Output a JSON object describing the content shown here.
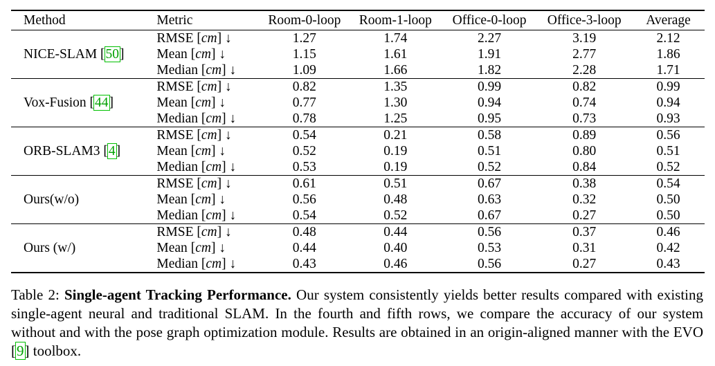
{
  "table": {
    "headers": [
      "Method",
      "Metric",
      "Room-0-loop",
      "Room-1-loop",
      "Office-0-loop",
      "Office-3-loop",
      "Average"
    ],
    "metric_unit": "cm",
    "arrow": "↓",
    "metrics": [
      "RMSE",
      "Mean",
      "Median"
    ],
    "groups": [
      {
        "method": "NICE-SLAM ",
        "cite": "50",
        "rows": [
          {
            "values": [
              "1.27",
              "1.74",
              "2.27",
              "3.19",
              "2.12"
            ],
            "bold": [
              false,
              false,
              false,
              false,
              false
            ]
          },
          {
            "values": [
              "1.15",
              "1.61",
              "1.91",
              "2.77",
              "1.86"
            ],
            "bold": [
              false,
              false,
              false,
              false,
              false
            ]
          },
          {
            "values": [
              "1.09",
              "1.66",
              "1.82",
              "2.28",
              "1.71"
            ],
            "bold": [
              false,
              false,
              false,
              false,
              false
            ]
          }
        ]
      },
      {
        "method": "Vox-Fusion ",
        "cite": "44",
        "rows": [
          {
            "values": [
              "0.82",
              "1.35",
              "0.99",
              "0.82",
              "0.99"
            ],
            "bold": [
              false,
              false,
              false,
              false,
              false
            ]
          },
          {
            "values": [
              "0.77",
              "1.30",
              "0.94",
              "0.74",
              "0.94"
            ],
            "bold": [
              false,
              false,
              false,
              false,
              false
            ]
          },
          {
            "values": [
              "0.78",
              "1.25",
              "0.95",
              "0.73",
              "0.93"
            ],
            "bold": [
              false,
              false,
              false,
              false,
              false
            ]
          }
        ]
      },
      {
        "method": "ORB-SLAM3 ",
        "cite": "4",
        "rows": [
          {
            "values": [
              "0.54",
              "0.21",
              "0.58",
              "0.89",
              "0.56"
            ],
            "bold": [
              false,
              true,
              false,
              false,
              false
            ]
          },
          {
            "values": [
              "0.52",
              "0.19",
              "0.51",
              "0.80",
              "0.51"
            ],
            "bold": [
              false,
              true,
              false,
              false,
              false
            ]
          },
          {
            "values": [
              "0.53",
              "0.19",
              "0.52",
              "0.84",
              "0.52"
            ],
            "bold": [
              false,
              true,
              false,
              false,
              false
            ]
          }
        ]
      },
      {
        "method": "Ours(w/o)",
        "cite": "",
        "rows": [
          {
            "values": [
              "0.61",
              "0.51",
              "0.67",
              "0.38",
              "0.54"
            ],
            "bold": [
              false,
              false,
              false,
              false,
              false
            ]
          },
          {
            "values": [
              "0.56",
              "0.48",
              "0.63",
              "0.32",
              "0.50"
            ],
            "bold": [
              false,
              false,
              false,
              false,
              false
            ]
          },
          {
            "values": [
              "0.54",
              "0.52",
              "0.67",
              "0.27",
              "0.50"
            ],
            "bold": [
              false,
              false,
              false,
              true,
              false
            ]
          }
        ]
      },
      {
        "method": "Ours (w/)",
        "cite": "",
        "rows": [
          {
            "values": [
              "0.48",
              "0.44",
              "0.56",
              "0.37",
              "0.46"
            ],
            "bold": [
              true,
              false,
              true,
              true,
              true
            ]
          },
          {
            "values": [
              "0.44",
              "0.40",
              "0.53",
              "0.31",
              "0.42"
            ],
            "bold": [
              true,
              false,
              true,
              true,
              true
            ]
          },
          {
            "values": [
              "0.43",
              "0.46",
              "0.56",
              "0.27",
              "0.43"
            ],
            "bold": [
              true,
              false,
              true,
              true,
              true
            ]
          }
        ]
      }
    ]
  },
  "caption": {
    "label": "Table 2: ",
    "title": "Single-agent Tracking Performance.",
    "text_before_cite": " Our system consistently yields better results compared with existing single-agent neural and traditional SLAM. In the fourth and fifth rows, we compare the accuracy of our system without and with the pose graph optimization module. Results are obtained in an origin-aligned manner with the EVO ",
    "cite": "9",
    "text_after_cite": " toolbox."
  }
}
